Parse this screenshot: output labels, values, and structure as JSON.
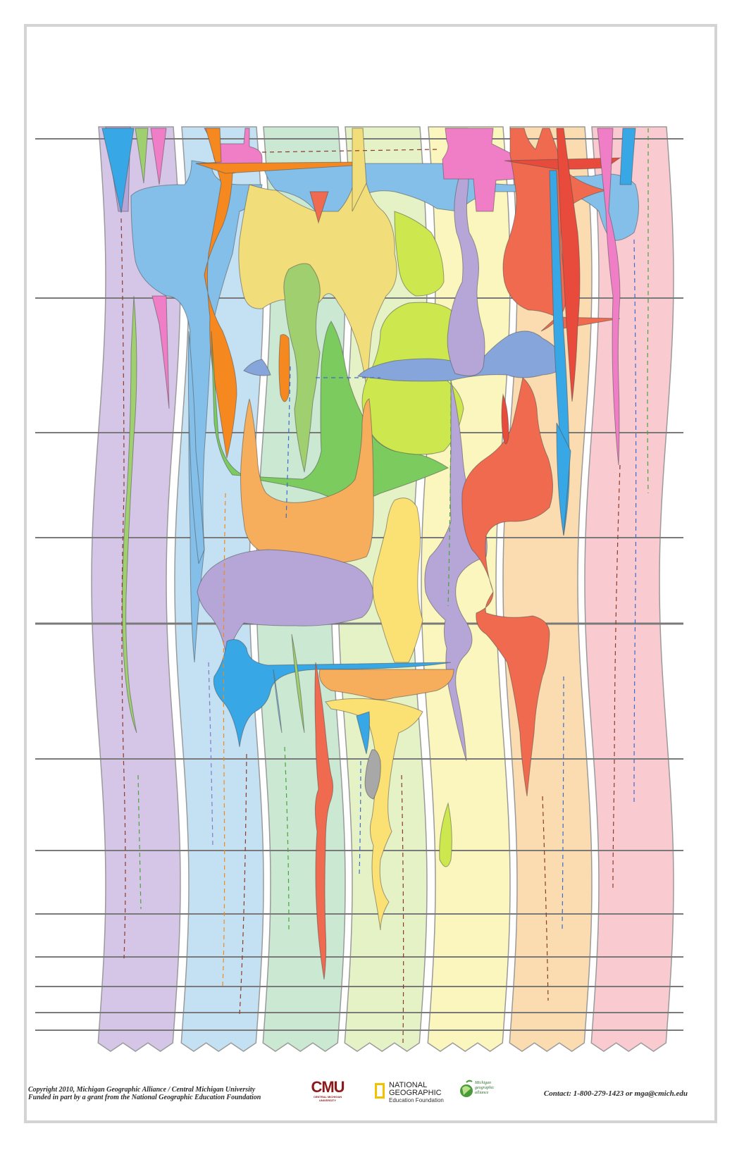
{
  "footer": {
    "copyright_line1": "Copyright 2010, Michigan Geographic Alliance / Central Michigan University",
    "copyright_line2": "Funded in part by a grant from the National Geographic Education Foundation",
    "contact": "Contact: 1-800-279-1423 or mga@cmich.edu"
  },
  "logos": {
    "cmu_main": "CMU",
    "cmu_sub": "CENTRAL MICHIGAN UNIVERSITY",
    "natgeo_line1": "NATIONAL",
    "natgeo_line2": "GEOGRAPHIC",
    "natgeo_sub": "Education Foundation",
    "mga_text": "Michigan\ngeographic\nalliance"
  },
  "colors": {
    "frame_border": "#d4d4d4",
    "timeline": "#7a7a7a",
    "columns": [
      "#d5c6e8",
      "#c3e1f2",
      "#cbe8d2",
      "#e5f2c6",
      "#fbf6bd",
      "#fbdcb0",
      "#f9cbd0"
    ],
    "purple": "#b6a6d8",
    "light_blue": "#83bfe9",
    "blue": "#37a7e5",
    "pink": "#ef7ec6",
    "orange": "#f5891f",
    "light_orange": "#f6ae5c",
    "yellow": "#f1dd79",
    "gold": "#fbe073",
    "lime": "#cde84f",
    "green": "#7ccb5e",
    "sage": "#9fcf6f",
    "red": "#ef6a4e",
    "bright_red": "#e84a3c",
    "periwinkle": "#86a6db",
    "grey": "#a8a8a8"
  },
  "icons": {
    "natgeo": "yellow-rectangle-frame",
    "mga": "green-globe-leaf-icon"
  }
}
